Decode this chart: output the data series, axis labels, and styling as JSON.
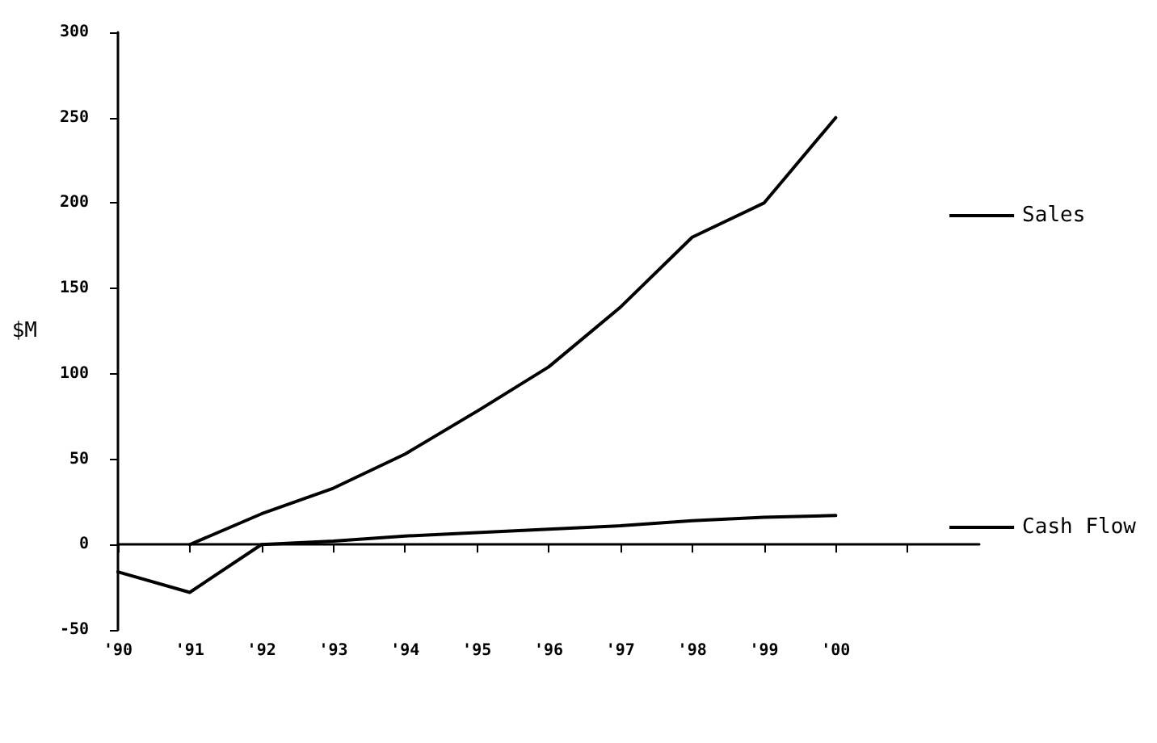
{
  "chart_data": {
    "type": "line",
    "ylabel": "$M",
    "x": [
      1990,
      1991,
      1992,
      1993,
      1994,
      1995,
      1996,
      1997,
      1998,
      1999,
      2000
    ],
    "series": [
      {
        "name": "Sales",
        "color": "#000000",
        "x": [
          1991,
          1992,
          1993,
          1994,
          1995,
          1996,
          1997,
          1998,
          1999,
          2000
        ],
        "values": [
          0,
          18,
          33,
          53,
          78,
          104,
          139,
          180,
          200,
          250
        ]
      },
      {
        "name": "Cash Flow",
        "color": "#000000",
        "values": [
          -16,
          -28,
          0,
          2,
          5,
          7,
          9,
          11,
          14,
          16,
          17
        ]
      }
    ],
    "xlim": [
      1990,
      2002
    ],
    "xticks": [
      {
        "value": 1990,
        "label": "'90"
      },
      {
        "value": 1991,
        "label": "'91"
      },
      {
        "value": 1992,
        "label": "'92"
      },
      {
        "value": 1993,
        "label": "'93"
      },
      {
        "value": 1994,
        "label": "'94"
      },
      {
        "value": 1995,
        "label": "'95"
      },
      {
        "value": 1996,
        "label": "'96"
      },
      {
        "value": 1997,
        "label": "'97"
      },
      {
        "value": 1998,
        "label": "'98"
      },
      {
        "value": 1999,
        "label": "'99"
      },
      {
        "value": 2000,
        "label": "'00"
      },
      {
        "value": 2001,
        "label": null
      }
    ],
    "ylim": [
      -50,
      300
    ],
    "yticks": [
      -50,
      0,
      50,
      100,
      150,
      200,
      250,
      300
    ],
    "legend": "right",
    "marker": "none",
    "line_style": "solid"
  }
}
